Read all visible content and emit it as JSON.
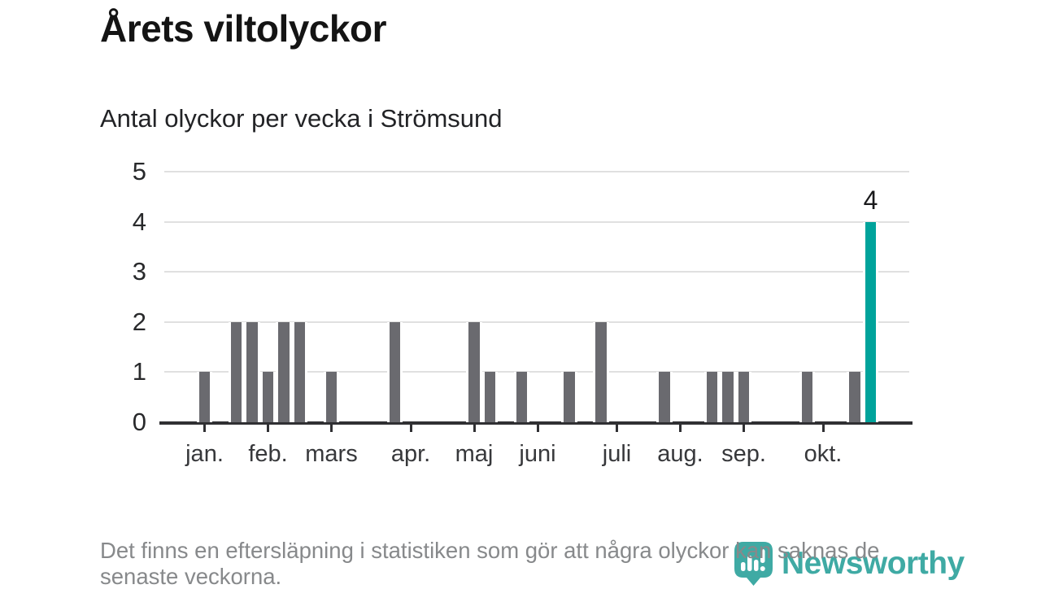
{
  "title": "Årets viltolyckor",
  "subtitle": "Antal olyckor per vecka i Strömsund",
  "footnote": "Det finns en eftersläpning i statistiken som gör att några olyckor kan saknas de senaste veckorna.",
  "logo": {
    "text": "Newsworthy",
    "color": "#38a7a1",
    "icon": "newsworthy-speech-bubble-bars-icon"
  },
  "chart_data": {
    "type": "bar",
    "x_unit": "week",
    "xlabel": "",
    "ylabel": "",
    "weeks": [
      1,
      2,
      3,
      4,
      5,
      6,
      7,
      8,
      9,
      10,
      11,
      12,
      13,
      14,
      15,
      16,
      17,
      18,
      19,
      20,
      21,
      22,
      23,
      24,
      25,
      26,
      27,
      28,
      29,
      30,
      31,
      32,
      33,
      34,
      35,
      36,
      37,
      38,
      39,
      40,
      41,
      42,
      43,
      44,
      45
    ],
    "values": [
      1,
      0,
      2,
      2,
      1,
      2,
      2,
      0,
      1,
      0,
      0,
      0,
      2,
      0,
      0,
      0,
      0,
      2,
      1,
      0,
      1,
      0,
      0,
      1,
      0,
      2,
      0,
      0,
      0,
      1,
      0,
      0,
      1,
      1,
      1,
      0,
      0,
      0,
      1,
      0,
      0,
      1,
      4,
      0,
      0
    ],
    "highlight_week": 43,
    "highlight_value_label": "4",
    "month_ticks": [
      {
        "week": 1,
        "label": "jan."
      },
      {
        "week": 5,
        "label": "feb."
      },
      {
        "week": 9,
        "label": "mars"
      },
      {
        "week": 14,
        "label": "apr."
      },
      {
        "week": 18,
        "label": "maj"
      },
      {
        "week": 22,
        "label": "juni"
      },
      {
        "week": 27,
        "label": "juli"
      },
      {
        "week": 31,
        "label": "aug."
      },
      {
        "week": 35,
        "label": "sep."
      },
      {
        "week": 40,
        "label": "okt."
      }
    ],
    "y_ticks": [
      0,
      1,
      2,
      3,
      4,
      5
    ],
    "ylim": [
      0,
      5
    ],
    "grid": true,
    "legend": "none",
    "colors": {
      "bar": "#6a6a6f",
      "highlight": "#00a39b",
      "axis": "#303033",
      "gridline": "#e0e0e0"
    }
  }
}
